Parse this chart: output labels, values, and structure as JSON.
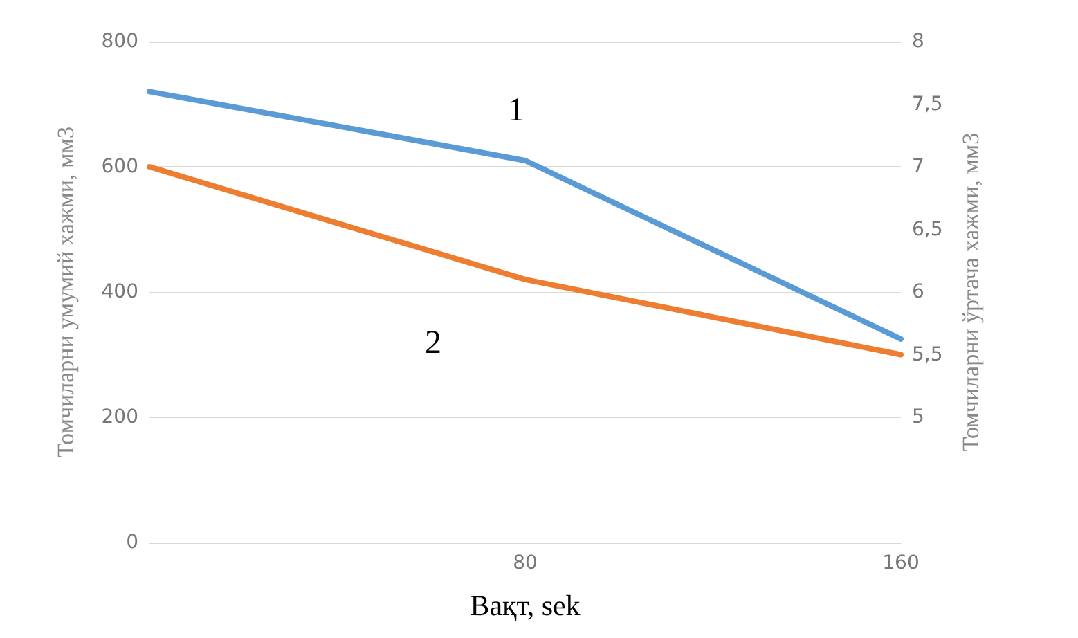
{
  "chart_data": {
    "type": "line",
    "xlabel": "Вақт, sek",
    "ylabel": "Томчиларни умумий хажми, мм3",
    "y2label": "Томчиларни ўртача хажми, мм3",
    "categories": [
      null,
      "80",
      "160"
    ],
    "series": [
      {
        "color": "#5b9bd5",
        "values": [
          720,
          610,
          325
        ]
      },
      {
        "color": "#ed7d31",
        "values": [
          7,
          6.1,
          5.5
        ],
        "axis": "y2"
      }
    ],
    "ylim": [
      0,
      800
    ],
    "yticks": [
      0,
      200,
      400,
      600,
      800
    ],
    "y2lim": [
      4,
      8
    ],
    "y2ticks": [
      {
        "value": 4,
        "label": null
      },
      5,
      {
        "value": 5.5,
        "label": "5,5"
      },
      6,
      {
        "value": 6.5,
        "label": "6,5"
      },
      7,
      {
        "value": 7.5,
        "label": "7,5"
      },
      8
    ],
    "annotations": [
      "1",
      "2"
    ],
    "grid": "y",
    "marker": "none",
    "line_style": "solid"
  }
}
